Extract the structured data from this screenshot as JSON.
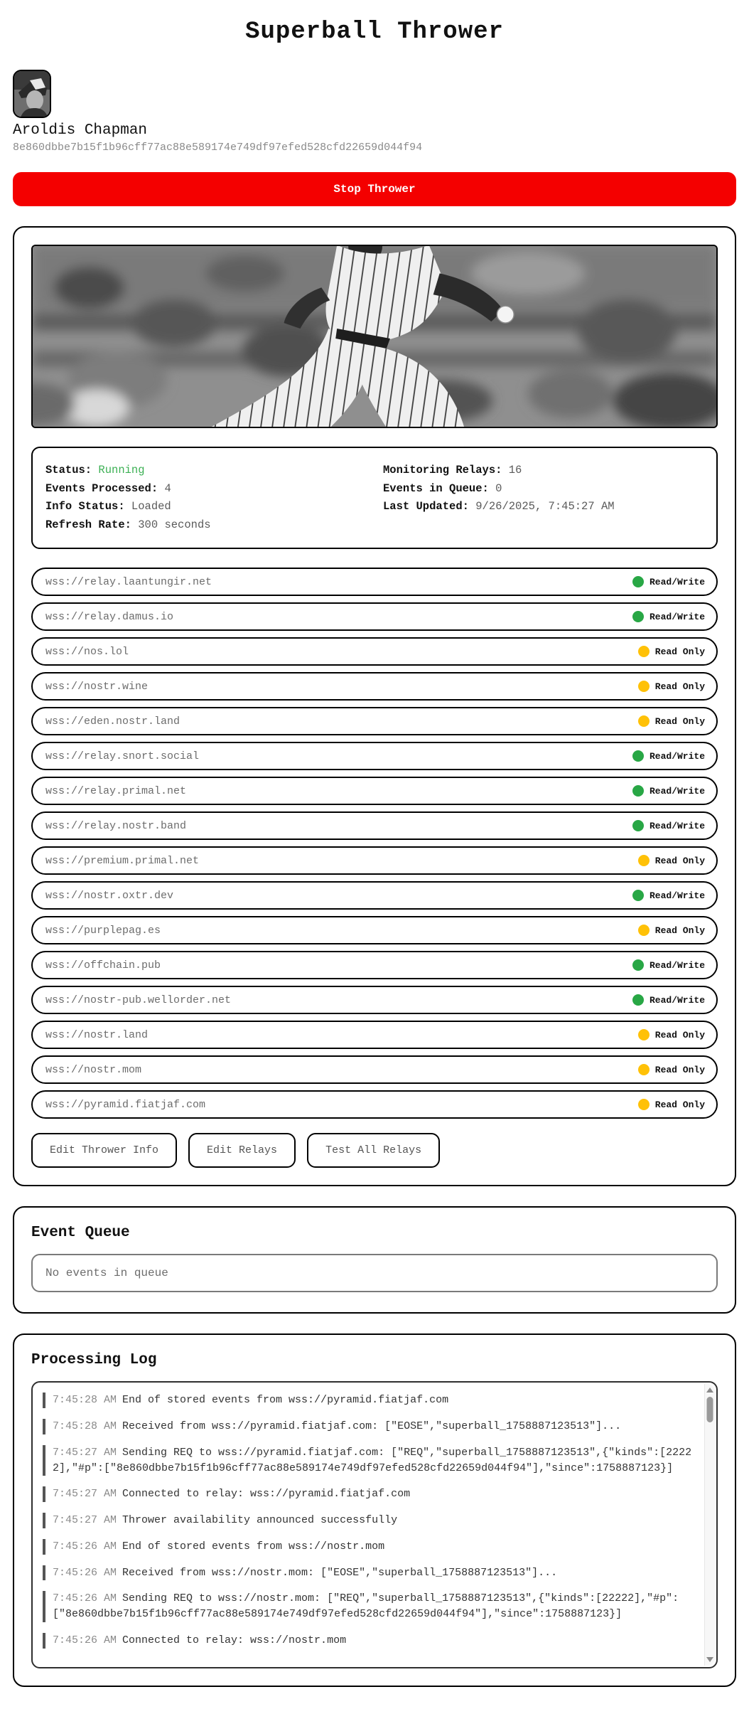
{
  "page": {
    "title": "Superball Thrower"
  },
  "profile": {
    "name": "Aroldis Chapman",
    "pubkey": "8e860dbbe7b15f1b96cff77ac88e589174e749df97efed528cfd22659d044f94"
  },
  "controls": {
    "stop_button_label": "Stop Thrower"
  },
  "status": {
    "left": [
      {
        "label": "Status:",
        "value": "Running",
        "green": true
      },
      {
        "label": "Events Processed:",
        "value": "4"
      },
      {
        "label": "Info Status:",
        "value": "Loaded"
      },
      {
        "label": "Refresh Rate:",
        "value": "300 seconds"
      }
    ],
    "right": [
      {
        "label": "Monitoring Relays:",
        "value": "16"
      },
      {
        "label": "Events in Queue:",
        "value": "0"
      },
      {
        "label": "Last Updated:",
        "value": "9/26/2025, 7:45:27 AM"
      }
    ]
  },
  "relay_badges": {
    "rw": "Read/Write",
    "ro": "Read Only"
  },
  "relays": [
    {
      "url": "wss://relay.laantungir.net",
      "access": "rw"
    },
    {
      "url": "wss://relay.damus.io",
      "access": "rw"
    },
    {
      "url": "wss://nos.lol",
      "access": "ro"
    },
    {
      "url": "wss://nostr.wine",
      "access": "ro"
    },
    {
      "url": "wss://eden.nostr.land",
      "access": "ro"
    },
    {
      "url": "wss://relay.snort.social",
      "access": "rw"
    },
    {
      "url": "wss://relay.primal.net",
      "access": "rw"
    },
    {
      "url": "wss://relay.nostr.band",
      "access": "rw"
    },
    {
      "url": "wss://premium.primal.net",
      "access": "ro"
    },
    {
      "url": "wss://nostr.oxtr.dev",
      "access": "rw"
    },
    {
      "url": "wss://purplepag.es",
      "access": "ro"
    },
    {
      "url": "wss://offchain.pub",
      "access": "rw"
    },
    {
      "url": "wss://nostr-pub.wellorder.net",
      "access": "rw"
    },
    {
      "url": "wss://nostr.land",
      "access": "ro"
    },
    {
      "url": "wss://nostr.mom",
      "access": "ro"
    },
    {
      "url": "wss://pyramid.fiatjaf.com",
      "access": "ro"
    }
  ],
  "actions": [
    "Edit Thrower Info",
    "Edit Relays",
    "Test All Relays"
  ],
  "event_queue": {
    "title": "Event Queue",
    "empty_message": "No events in queue"
  },
  "processing_log": {
    "title": "Processing Log",
    "entries": [
      {
        "time": "7:45:28 AM",
        "message": "End of stored events from wss://pyramid.fiatjaf.com"
      },
      {
        "time": "7:45:28 AM",
        "message": "Received from wss://pyramid.fiatjaf.com: [\"EOSE\",\"superball_1758887123513\"]..."
      },
      {
        "time": "7:45:27 AM",
        "message": "Sending REQ to wss://pyramid.fiatjaf.com: [\"REQ\",\"superball_1758887123513\",{\"kinds\":[22222],\"#p\":[\"8e860dbbe7b15f1b96cff77ac88e589174e749df97efed528cfd22659d044f94\"],\"since\":1758887123}]"
      },
      {
        "time": "7:45:27 AM",
        "message": "Connected to relay: wss://pyramid.fiatjaf.com"
      },
      {
        "time": "7:45:27 AM",
        "message": "Thrower availability announced successfully"
      },
      {
        "time": "7:45:26 AM",
        "message": "End of stored events from wss://nostr.mom"
      },
      {
        "time": "7:45:26 AM",
        "message": "Received from wss://nostr.mom: [\"EOSE\",\"superball_1758887123513\"]..."
      },
      {
        "time": "7:45:26 AM",
        "message": "Sending REQ to wss://nostr.mom: [\"REQ\",\"superball_1758887123513\",{\"kinds\":[22222],\"#p\":[\"8e860dbbe7b15f1b96cff77ac88e589174e749df97efed528cfd22659d044f94\"],\"since\":1758887123}]"
      },
      {
        "time": "7:45:26 AM",
        "message": "Connected to relay: wss://nostr.mom"
      }
    ]
  },
  "colors": {
    "accent_red": "#f40000",
    "status_running_green": "#3cb054",
    "read_write_green": "#28a745",
    "read_only_yellow": "#ffc107"
  }
}
